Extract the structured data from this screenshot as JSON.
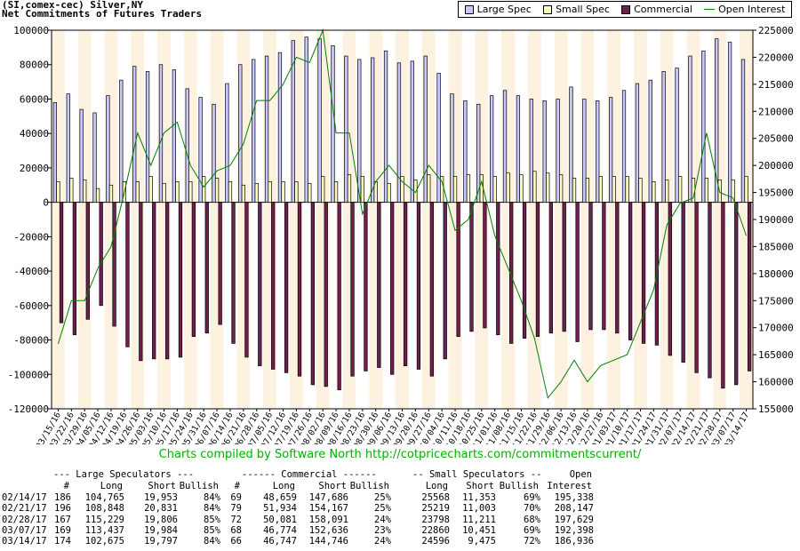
{
  "header": {
    "line1": "(SI,comex-cec) Silver,NY",
    "line2": "Net Commitments of Futures Traders"
  },
  "legend": [
    {
      "label": "Large Spec",
      "color": "#c8c8ff"
    },
    {
      "label": "Small Spec",
      "color": "#ffffc0"
    },
    {
      "label": "Commercial",
      "color": "#702050"
    },
    {
      "label": "Open Interest",
      "color": "#008000"
    }
  ],
  "credit": "Charts compiled by Software North  http://cotpricecharts.com/commitmentscurrent/",
  "chart_data": {
    "type": "bar",
    "x": [
      "03/15/16",
      "03/22/16",
      "03/29/16",
      "04/05/16",
      "04/12/16",
      "04/19/16",
      "04/26/16",
      "05/03/16",
      "05/10/16",
      "05/17/16",
      "05/24/16",
      "05/31/16",
      "06/07/16",
      "06/14/16",
      "06/21/16",
      "06/28/16",
      "07/05/16",
      "07/12/16",
      "07/19/16",
      "07/26/16",
      "08/02/16",
      "08/09/16",
      "08/16/16",
      "08/23/16",
      "08/30/16",
      "09/06/16",
      "09/13/16",
      "09/20/16",
      "09/27/16",
      "10/04/16",
      "10/11/16",
      "10/18/16",
      "10/25/16",
      "11/01/16",
      "11/08/16",
      "11/15/16",
      "11/22/16",
      "11/29/16",
      "12/06/16",
      "12/13/16",
      "12/20/16",
      "12/27/16",
      "01/03/17",
      "01/10/17",
      "01/17/17",
      "01/24/17",
      "01/31/17",
      "02/07/17",
      "02/14/17",
      "02/21/17",
      "02/28/17",
      "03/07/17",
      "03/14/17"
    ],
    "x_tick_labels": [
      "03/15/16",
      "03/22/16",
      "03/29/16",
      "04/05/16",
      "04/12/16",
      "04/19/16",
      "04/26/16",
      "05/03/16",
      "05/10/16",
      "05/17/16",
      "05/24/16",
      "05/31/16",
      "06/07/16",
      "06/14/16",
      "06/21/16",
      "06/28/16",
      "07/05/16",
      "07/12/16",
      "07/19/16",
      "07/26/16",
      "08/02/16",
      "08/09/16",
      "08/16/16",
      "08/23/16",
      "08/30/16",
      "09/06/16",
      "09/13/16",
      "09/20/16",
      "09/27/16",
      "10/04/16",
      "10/11/16",
      "10/18/16",
      "10/25/16",
      "11/01/16",
      "11/08/16",
      "11/15/16",
      "11/22/16",
      "11/29/16",
      "12/06/16",
      "12/13/16",
      "12/20/16",
      "12/27/16",
      "01/03/17",
      "01/10/17",
      "01/17/17",
      "01/24/17",
      "01/31/17",
      "02/07/17",
      "02/14/17",
      "02/21/17",
      "02/28/17",
      "03/07/17",
      "03/14/17"
    ],
    "series": [
      {
        "name": "Large Spec",
        "axis": "left",
        "color": "#c8c8ff",
        "values": [
          58000,
          63000,
          54000,
          52000,
          62000,
          71000,
          79000,
          76000,
          80000,
          77000,
          66000,
          61000,
          57000,
          69000,
          80000,
          83000,
          85000,
          87000,
          94000,
          96000,
          95000,
          91000,
          85000,
          83000,
          84000,
          88000,
          81000,
          82000,
          85000,
          75000,
          63000,
          59000,
          57000,
          62000,
          65000,
          62000,
          60000,
          59000,
          60000,
          67000,
          60000,
          59000,
          61000,
          65000,
          69000,
          71000,
          76000,
          78000,
          85000,
          88000,
          95000,
          93000,
          83000
        ]
      },
      {
        "name": "Small Spec",
        "axis": "left",
        "color": "#ffffc0",
        "values": [
          12000,
          14000,
          13000,
          8000,
          10000,
          12000,
          12000,
          15000,
          11000,
          12000,
          12000,
          15000,
          14000,
          12000,
          10000,
          11000,
          12000,
          12000,
          12000,
          11000,
          15000,
          12000,
          16000,
          15000,
          12000,
          11000,
          15000,
          13000,
          16000,
          15000,
          15000,
          16000,
          16000,
          15000,
          17000,
          16000,
          18000,
          17000,
          16000,
          14000,
          14000,
          15000,
          15000,
          15000,
          14000,
          12000,
          13000,
          15000,
          14000,
          14000,
          13000,
          13000,
          15000
        ]
      },
      {
        "name": "Commercial",
        "axis": "left",
        "color": "#702050",
        "values": [
          -70000,
          -77000,
          -68000,
          -60000,
          -72000,
          -84000,
          -92000,
          -91000,
          -91000,
          -90000,
          -78000,
          -76000,
          -71000,
          -82000,
          -90000,
          -95000,
          -97000,
          -99000,
          -101000,
          -106000,
          -107000,
          -109000,
          -101000,
          -98000,
          -96000,
          -100000,
          -95000,
          -97000,
          -101000,
          -91000,
          -78000,
          -75000,
          -73000,
          -77000,
          -82000,
          -79000,
          -78000,
          -76000,
          -75000,
          -81000,
          -74000,
          -74000,
          -76000,
          -80000,
          -82000,
          -83000,
          -89000,
          -93000,
          -99000,
          -102000,
          -108000,
          -106000,
          -98000
        ]
      },
      {
        "name": "Open Interest",
        "axis": "right",
        "type": "line",
        "color": "#008000",
        "values": [
          167000,
          175000,
          175000,
          181000,
          185000,
          195000,
          206000,
          200000,
          206000,
          208000,
          200000,
          196000,
          199000,
          200000,
          204000,
          212000,
          212000,
          215000,
          220000,
          219000,
          225000,
          206000,
          206000,
          191000,
          197000,
          200000,
          197000,
          195000,
          200000,
          197000,
          188000,
          190000,
          197000,
          187000,
          181000,
          175000,
          168000,
          157000,
          160000,
          164000,
          160000,
          163000,
          164000,
          165000,
          171000,
          177000,
          189000,
          193000,
          194000,
          206000,
          195000,
          194000,
          187000
        ]
      }
    ],
    "y_left": {
      "min": -120000,
      "max": 100000,
      "ticks": [
        100000,
        80000,
        60000,
        40000,
        20000,
        0,
        -20000,
        -40000,
        -60000,
        -80000,
        -100000,
        -120000
      ]
    },
    "y_right": {
      "min": 155000,
      "max": 225000,
      "ticks": [
        225000,
        220000,
        215000,
        210000,
        205000,
        200000,
        195000,
        190000,
        185000,
        180000,
        175000,
        170000,
        165000,
        160000,
        155000
      ]
    },
    "grid": false,
    "legend_position": "top-right",
    "stripe_colors": [
      "#fdf2e0",
      "#ffffff"
    ]
  },
  "table": {
    "header1": [
      "--- Large Speculators ---",
      "------ Commercial ------",
      "-- Small Speculators --",
      "Open"
    ],
    "header2": [
      "#",
      "Long",
      "Short",
      "Bullish",
      "#",
      "Long",
      "Short",
      "Bullish",
      "Long",
      "Short",
      "Bullish",
      "Interest"
    ],
    "rows": [
      [
        "02/14/17",
        "186",
        "104,765",
        "19,953",
        "84%",
        "69",
        "48,659",
        "147,686",
        "25%",
        "25568",
        "11,353",
        "69%",
        "195,338"
      ],
      [
        "02/21/17",
        "196",
        "108,848",
        "20,831",
        "84%",
        "79",
        "51,934",
        "154,167",
        "25%",
        "25219",
        "11,003",
        "70%",
        "208,147"
      ],
      [
        "02/28/17",
        "167",
        "115,229",
        "19,806",
        "85%",
        "72",
        "50,081",
        "158,091",
        "24%",
        "23798",
        "11,211",
        "68%",
        "197,629"
      ],
      [
        "03/07/17",
        "169",
        "113,437",
        "19,984",
        "85%",
        "68",
        "46,774",
        "152,636",
        "23%",
        "22860",
        "10,451",
        "69%",
        "192,398"
      ],
      [
        "03/14/17",
        "174",
        "102,675",
        "19,797",
        "84%",
        "66",
        "46,747",
        "144,746",
        "24%",
        "24596",
        "9,475",
        "72%",
        "186,936"
      ]
    ]
  }
}
